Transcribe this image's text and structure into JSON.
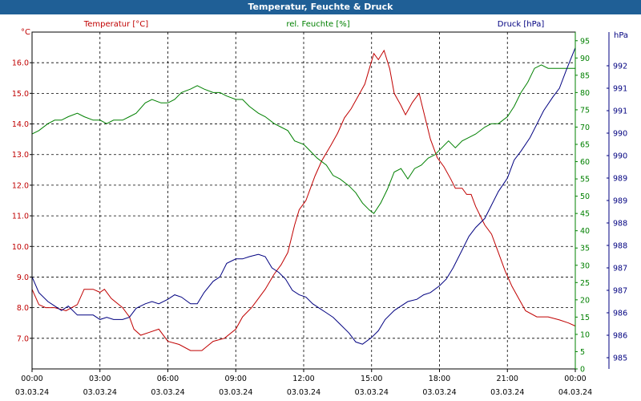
{
  "window": {
    "title": "Temperatur, Feuchte & Druck"
  },
  "chart_data": {
    "type": "line",
    "title": "Temperatur, Feuchte & Druck",
    "grid": true,
    "x": {
      "ticks": [
        {
          "time": "00:00",
          "date": "03.03.24"
        },
        {
          "time": "03:00",
          "date": "03.03.24"
        },
        {
          "time": "06:00",
          "date": "03.03.24"
        },
        {
          "time": "09:00",
          "date": "03.03.24"
        },
        {
          "time": "12:00",
          "date": "03.03.24"
        },
        {
          "time": "15:00",
          "date": "03.03.24"
        },
        {
          "time": "18:00",
          "date": "03.03.24"
        },
        {
          "time": "21:00",
          "date": "03.03.24"
        },
        {
          "time": "00:00",
          "date": "04.03.24"
        }
      ]
    },
    "axes": {
      "temperature": {
        "unit_label": "°C",
        "color": "#c00000",
        "range": [
          6.0,
          17.0
        ],
        "tick_labels": [
          "7.0",
          "8.0",
          "9.0",
          "10.0",
          "11.0",
          "12.0",
          "13.0",
          "14.0",
          "15.0",
          "16.0"
        ],
        "tick_values": [
          7,
          8,
          9,
          10,
          11,
          12,
          13,
          14,
          15,
          16
        ]
      },
      "humidity": {
        "unit_label": "%",
        "color": "#008000",
        "range": [
          0,
          97.5
        ],
        "tick_labels": [
          "0",
          "5",
          "10",
          "15",
          "20",
          "25",
          "30",
          "35",
          "40",
          "45",
          "50",
          "55",
          "60",
          "65",
          "70",
          "75",
          "80",
          "85",
          "90",
          "95"
        ],
        "tick_values": [
          0,
          5,
          10,
          15,
          20,
          25,
          30,
          35,
          40,
          45,
          50,
          55,
          60,
          65,
          70,
          75,
          80,
          85,
          90,
          95
        ]
      },
      "pressure": {
        "unit_label": "hPa",
        "color": "#000080",
        "range": [
          984.75,
          992.25
        ],
        "tick_labels": [
          "985",
          "986",
          "986",
          "987",
          "987",
          "988",
          "988",
          "989",
          "989",
          "990",
          "990",
          "991",
          "991",
          "992"
        ],
        "tick_values": [
          985,
          985.5,
          986,
          986.5,
          987,
          987.5,
          988,
          988.5,
          989,
          989.5,
          990,
          990.5,
          991,
          991.5
        ]
      }
    },
    "series": [
      {
        "name": "Temperatur [°C]",
        "axis": "temperature",
        "color": "#c00000",
        "points": [
          [
            0,
            8.6
          ],
          [
            0.3,
            8.1
          ],
          [
            0.6,
            8.0
          ],
          [
            1.0,
            8.0
          ],
          [
            1.5,
            7.9
          ],
          [
            2.0,
            8.1
          ],
          [
            2.3,
            8.6
          ],
          [
            2.7,
            8.6
          ],
          [
            3.0,
            8.5
          ],
          [
            3.2,
            8.6
          ],
          [
            3.5,
            8.3
          ],
          [
            4.0,
            8.0
          ],
          [
            4.3,
            7.7
          ],
          [
            4.5,
            7.3
          ],
          [
            4.8,
            7.1
          ],
          [
            5.2,
            7.2
          ],
          [
            5.6,
            7.3
          ],
          [
            6.0,
            6.9
          ],
          [
            6.5,
            6.8
          ],
          [
            7.0,
            6.6
          ],
          [
            7.5,
            6.6
          ],
          [
            8.0,
            6.9
          ],
          [
            8.5,
            7.0
          ],
          [
            9.0,
            7.3
          ],
          [
            9.3,
            7.7
          ],
          [
            9.7,
            8.0
          ],
          [
            10.0,
            8.3
          ],
          [
            10.3,
            8.6
          ],
          [
            10.7,
            9.1
          ],
          [
            11.0,
            9.4
          ],
          [
            11.3,
            9.8
          ],
          [
            11.6,
            10.7
          ],
          [
            11.8,
            11.2
          ],
          [
            12.1,
            11.5
          ],
          [
            12.5,
            12.3
          ],
          [
            12.8,
            12.8
          ],
          [
            13.2,
            13.3
          ],
          [
            13.5,
            13.7
          ],
          [
            13.8,
            14.2
          ],
          [
            14.1,
            14.5
          ],
          [
            14.4,
            14.9
          ],
          [
            14.7,
            15.3
          ],
          [
            14.9,
            15.8
          ],
          [
            15.1,
            16.3
          ],
          [
            15.3,
            16.1
          ],
          [
            15.55,
            16.4
          ],
          [
            15.8,
            15.8
          ],
          [
            16.0,
            15.0
          ],
          [
            16.3,
            14.6
          ],
          [
            16.5,
            14.3
          ],
          [
            16.8,
            14.7
          ],
          [
            17.1,
            15.0
          ],
          [
            17.3,
            14.4
          ],
          [
            17.6,
            13.5
          ],
          [
            17.9,
            12.9
          ],
          [
            18.2,
            12.6
          ],
          [
            18.5,
            12.2
          ],
          [
            18.7,
            11.9
          ],
          [
            19.0,
            11.9
          ],
          [
            19.2,
            11.7
          ],
          [
            19.4,
            11.7
          ],
          [
            19.6,
            11.3
          ],
          [
            19.8,
            11.0
          ],
          [
            20.0,
            10.7
          ],
          [
            20.3,
            10.4
          ],
          [
            20.6,
            9.8
          ],
          [
            20.9,
            9.2
          ],
          [
            21.2,
            8.7
          ],
          [
            21.5,
            8.3
          ],
          [
            21.8,
            7.9
          ],
          [
            22.3,
            7.7
          ],
          [
            22.8,
            7.7
          ],
          [
            23.3,
            7.6
          ],
          [
            23.7,
            7.5
          ],
          [
            24.0,
            7.4
          ]
        ]
      },
      {
        "name": "rel. Feuchte [%]",
        "axis": "humidity",
        "color": "#008000",
        "points": [
          [
            0,
            68
          ],
          [
            0.3,
            69
          ],
          [
            0.7,
            71
          ],
          [
            1.0,
            72
          ],
          [
            1.3,
            72
          ],
          [
            1.6,
            73
          ],
          [
            2.0,
            74
          ],
          [
            2.3,
            73
          ],
          [
            2.7,
            72
          ],
          [
            3.0,
            72
          ],
          [
            3.3,
            71
          ],
          [
            3.6,
            72
          ],
          [
            4.0,
            72
          ],
          [
            4.3,
            73
          ],
          [
            4.6,
            74
          ],
          [
            5.0,
            77
          ],
          [
            5.3,
            78
          ],
          [
            5.7,
            77
          ],
          [
            6.0,
            77
          ],
          [
            6.3,
            78
          ],
          [
            6.6,
            80
          ],
          [
            7.0,
            81
          ],
          [
            7.3,
            82
          ],
          [
            7.6,
            81
          ],
          [
            8.0,
            80
          ],
          [
            8.3,
            80
          ],
          [
            8.6,
            79
          ],
          [
            9.0,
            78
          ],
          [
            9.3,
            78
          ],
          [
            9.6,
            76
          ],
          [
            10.0,
            74
          ],
          [
            10.3,
            73
          ],
          [
            10.7,
            71
          ],
          [
            11.0,
            70
          ],
          [
            11.3,
            69
          ],
          [
            11.6,
            66
          ],
          [
            12.0,
            65
          ],
          [
            12.3,
            63
          ],
          [
            12.6,
            61
          ],
          [
            13.0,
            59
          ],
          [
            13.3,
            56
          ],
          [
            13.6,
            55
          ],
          [
            14.0,
            53
          ],
          [
            14.3,
            51
          ],
          [
            14.6,
            48
          ],
          [
            14.9,
            46
          ],
          [
            15.1,
            45
          ],
          [
            15.4,
            48
          ],
          [
            15.7,
            52
          ],
          [
            16.0,
            57
          ],
          [
            16.3,
            58
          ],
          [
            16.6,
            55
          ],
          [
            16.9,
            58
          ],
          [
            17.2,
            59
          ],
          [
            17.5,
            61
          ],
          [
            17.8,
            62
          ],
          [
            18.1,
            64
          ],
          [
            18.4,
            66
          ],
          [
            18.7,
            64
          ],
          [
            19.0,
            66
          ],
          [
            19.3,
            67
          ],
          [
            19.6,
            68
          ],
          [
            20.0,
            70
          ],
          [
            20.3,
            71
          ],
          [
            20.6,
            71
          ],
          [
            21.0,
            73
          ],
          [
            21.3,
            76
          ],
          [
            21.6,
            80
          ],
          [
            21.9,
            83
          ],
          [
            22.2,
            87
          ],
          [
            22.5,
            88
          ],
          [
            22.8,
            87
          ],
          [
            23.1,
            87
          ],
          [
            23.5,
            87
          ],
          [
            24.0,
            87
          ]
        ]
      },
      {
        "name": "Druck [hPa]",
        "axis": "pressure",
        "color": "#000080",
        "points": [
          [
            0,
            986.8
          ],
          [
            0.3,
            986.45
          ],
          [
            0.7,
            986.25
          ],
          [
            1.0,
            986.15
          ],
          [
            1.3,
            986.05
          ],
          [
            1.6,
            986.15
          ],
          [
            2.0,
            985.95
          ],
          [
            2.3,
            985.95
          ],
          [
            2.7,
            985.95
          ],
          [
            3.0,
            985.85
          ],
          [
            3.3,
            985.9
          ],
          [
            3.6,
            985.85
          ],
          [
            4.0,
            985.85
          ],
          [
            4.3,
            985.9
          ],
          [
            4.6,
            986.1
          ],
          [
            5.0,
            986.2
          ],
          [
            5.3,
            986.25
          ],
          [
            5.6,
            986.2
          ],
          [
            6.0,
            986.3
          ],
          [
            6.3,
            986.4
          ],
          [
            6.6,
            986.35
          ],
          [
            7.0,
            986.2
          ],
          [
            7.3,
            986.2
          ],
          [
            7.6,
            986.45
          ],
          [
            8.0,
            986.7
          ],
          [
            8.3,
            986.8
          ],
          [
            8.6,
            987.1
          ],
          [
            9.0,
            987.2
          ],
          [
            9.3,
            987.2
          ],
          [
            9.6,
            987.25
          ],
          [
            10.0,
            987.3
          ],
          [
            10.3,
            987.25
          ],
          [
            10.6,
            987.0
          ],
          [
            10.9,
            986.9
          ],
          [
            11.2,
            986.75
          ],
          [
            11.5,
            986.5
          ],
          [
            11.8,
            986.4
          ],
          [
            12.1,
            986.35
          ],
          [
            12.4,
            986.2
          ],
          [
            12.7,
            986.1
          ],
          [
            13.0,
            986.0
          ],
          [
            13.3,
            985.9
          ],
          [
            13.6,
            985.75
          ],
          [
            14.0,
            985.55
          ],
          [
            14.3,
            985.35
          ],
          [
            14.6,
            985.3
          ],
          [
            15.0,
            985.45
          ],
          [
            15.3,
            985.6
          ],
          [
            15.6,
            985.85
          ],
          [
            16.0,
            986.05
          ],
          [
            16.3,
            986.15
          ],
          [
            16.6,
            986.25
          ],
          [
            17.0,
            986.3
          ],
          [
            17.3,
            986.4
          ],
          [
            17.6,
            986.45
          ],
          [
            18.0,
            986.6
          ],
          [
            18.3,
            986.75
          ],
          [
            18.6,
            987.0
          ],
          [
            19.0,
            987.4
          ],
          [
            19.3,
            987.7
          ],
          [
            19.6,
            987.9
          ],
          [
            20.0,
            988.1
          ],
          [
            20.3,
            988.4
          ],
          [
            20.6,
            988.7
          ],
          [
            21.0,
            989.0
          ],
          [
            21.3,
            989.4
          ],
          [
            21.6,
            989.6
          ],
          [
            22.0,
            989.9
          ],
          [
            22.3,
            990.2
          ],
          [
            22.6,
            990.5
          ],
          [
            23.0,
            990.8
          ],
          [
            23.3,
            991.0
          ],
          [
            23.6,
            991.4
          ],
          [
            24.0,
            991.9
          ]
        ]
      }
    ]
  }
}
